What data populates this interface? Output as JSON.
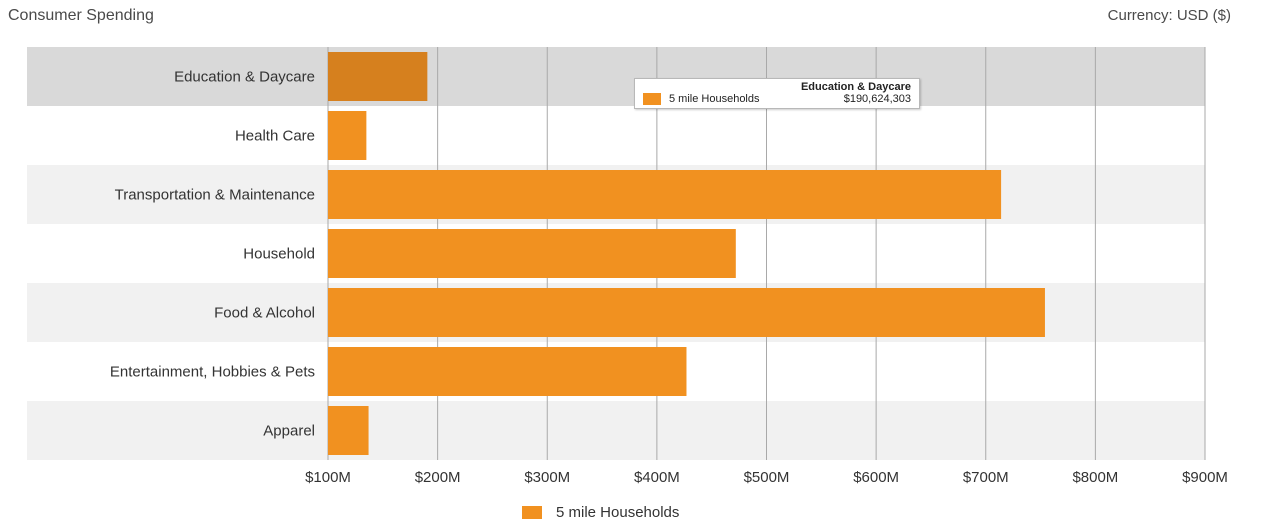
{
  "header": {
    "title": "Consumer Spending",
    "currency": "Currency: USD ($)"
  },
  "colors": {
    "bar": "#f19120",
    "bar_highlight": "#d6801e",
    "row_alt": "#f1f1f1",
    "row_highlight": "#d9d9d9",
    "grid": "#a9a9a9"
  },
  "tooltip": {
    "title": "Education & Daycare",
    "series": "5 mile Households",
    "value": "$190,624,303"
  },
  "chart_data": {
    "type": "bar",
    "orientation": "horizontal",
    "categories": [
      "Education & Daycare",
      "Health Care",
      "Transportation & Maintenance",
      "Household",
      "Food & Alcohol",
      "Entertainment, Hobbies & Pets",
      "Apparel"
    ],
    "series": [
      {
        "name": "5 mile Households",
        "values": [
          190624303,
          135000000,
          714000000,
          472000000,
          754000000,
          427000000,
          137000000
        ]
      }
    ],
    "xlim": [
      100000000,
      900000000
    ],
    "x_ticks": [
      100000000,
      200000000,
      300000000,
      400000000,
      500000000,
      600000000,
      700000000,
      800000000,
      900000000
    ],
    "x_tick_labels": [
      "$100M",
      "$200M",
      "$300M",
      "$400M",
      "$500M",
      "$600M",
      "$700M",
      "$800M",
      "$900M"
    ],
    "highlighted_category": "Education & Daycare",
    "legend_position": "bottom",
    "grid": true
  }
}
